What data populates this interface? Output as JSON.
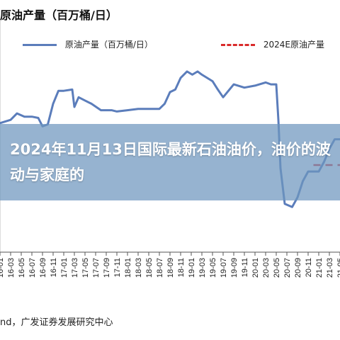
{
  "chart_data": {
    "type": "line",
    "title": "原油产量（百万桶/日）",
    "legend_position": "top",
    "grid": false,
    "x_ticks": [
      "16-01",
      "16-03",
      "16-05",
      "16-07",
      "16-09",
      "16-11",
      "17-01",
      "17-03",
      "17-05",
      "17-07",
      "17-09",
      "17-11",
      "18-01",
      "18-03",
      "18-05",
      "18-07",
      "18-09",
      "18-11",
      "19-01",
      "19-03",
      "19-05",
      "19-07",
      "19-09",
      "19-11",
      "20-01",
      "20-03",
      "20-05",
      "20-07",
      "20-09",
      "20-11",
      "21-01",
      "21-03",
      "21-05"
    ],
    "series": [
      {
        "name": "原油产量（百万桶/日）",
        "color": "#5b7dbb",
        "points": [
          [
            -0.8,
            9.2
          ],
          [
            0,
            9.3
          ],
          [
            1,
            9.35
          ],
          [
            1.6,
            9.45
          ],
          [
            2.3,
            9.4
          ],
          [
            3,
            9.4
          ],
          [
            3.6,
            9.38
          ],
          [
            4,
            9.25
          ],
          [
            4.5,
            9.28
          ],
          [
            5,
            9.6
          ],
          [
            5.5,
            9.8
          ],
          [
            6,
            9.8
          ],
          [
            6.8,
            9.82
          ],
          [
            7,
            9.55
          ],
          [
            7.4,
            9.7
          ],
          [
            8,
            9.65
          ],
          [
            8.6,
            9.6
          ],
          [
            9.5,
            9.5
          ],
          [
            10.5,
            9.5
          ],
          [
            11,
            9.48
          ],
          [
            12,
            9.5
          ],
          [
            13,
            9.52
          ],
          [
            14,
            9.52
          ],
          [
            15,
            9.52
          ],
          [
            15.5,
            9.6
          ],
          [
            16,
            9.78
          ],
          [
            16.5,
            9.82
          ],
          [
            17,
            10
          ],
          [
            17.6,
            10.1
          ],
          [
            18.1,
            10.05
          ],
          [
            18.6,
            10.1
          ],
          [
            19,
            10.05
          ],
          [
            20,
            9.95
          ],
          [
            20.5,
            9.82
          ],
          [
            21,
            9.7
          ],
          [
            22,
            9.9
          ],
          [
            23,
            9.85
          ],
          [
            24,
            9.88
          ],
          [
            25,
            9.93
          ],
          [
            25.5,
            9.9
          ],
          [
            26,
            9.9
          ],
          [
            26.2,
            9.35
          ],
          [
            26.4,
            8.6
          ],
          [
            26.8,
            8.05
          ],
          [
            27.5,
            8.0
          ],
          [
            28,
            8.15
          ],
          [
            28.5,
            8.4
          ],
          [
            29,
            8.55
          ],
          [
            30,
            8.55
          ],
          [
            30.5,
            8.7
          ],
          [
            31,
            8.9
          ],
          [
            31.5,
            9.05
          ],
          [
            32,
            9.05
          ]
        ]
      },
      {
        "name": "2024E原油产量",
        "color": "#d92b2b",
        "points": [
          [
            29.5,
            8.65
          ],
          [
            33,
            8.65
          ]
        ]
      }
    ],
    "ylim": [
      7.3,
      10.9
    ]
  },
  "source": "nd，广发证券发展研究中心",
  "overlay_headline": "2024年11月13日国际最新石油油价，油价的波动与家庭的"
}
